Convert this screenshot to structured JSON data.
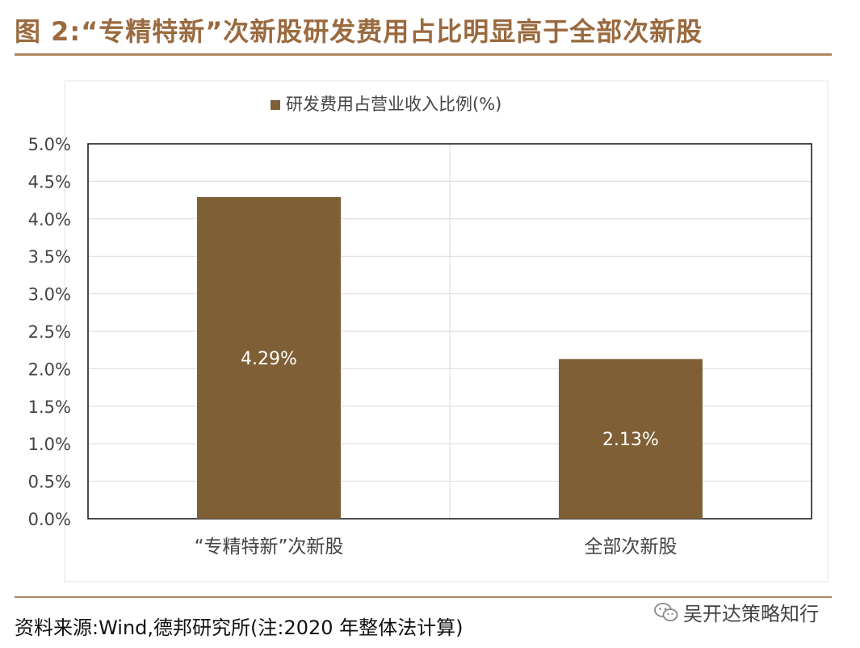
{
  "figure": {
    "title": "图 2:“专精特新”次新股研发费用占比明显高于全部次新股",
    "source": "资料来源:Wind,德邦研究所(注:2020 年整体法计算)"
  },
  "watermark": {
    "text": "吴开达策略知行",
    "icon": "wechat-icon"
  },
  "colors": {
    "accent": "#9a6a3e",
    "bar": "#7f5f36",
    "rule": "#b08660"
  },
  "chart_data": {
    "type": "bar",
    "title": "",
    "xlabel": "",
    "ylabel": "",
    "categories": [
      "“专精特新”次新股",
      "全部次新股"
    ],
    "series": [
      {
        "name": "研发费用占营业收入比例(%)",
        "values": [
          4.29,
          2.13
        ],
        "data_labels": [
          "4.29%",
          "2.13%"
        ]
      }
    ],
    "ylim": [
      0,
      5.0
    ],
    "yticks": [
      0.0,
      0.5,
      1.0,
      1.5,
      2.0,
      2.5,
      3.0,
      3.5,
      4.0,
      4.5,
      5.0
    ],
    "ytick_labels": [
      "0.0%",
      "0.5%",
      "1.0%",
      "1.5%",
      "2.0%",
      "2.5%",
      "3.0%",
      "3.5%",
      "4.0%",
      "4.5%",
      "5.0%"
    ],
    "grid": true,
    "legend": "top-center"
  }
}
